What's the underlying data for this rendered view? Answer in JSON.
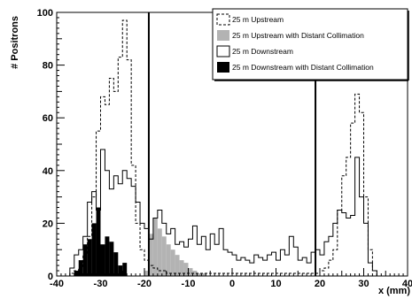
{
  "chart_data": {
    "type": "histogram",
    "xlabel": "x (mm)",
    "ylabel": "# Positrons",
    "xlim": [
      -40,
      40
    ],
    "ylim": [
      0,
      100
    ],
    "x_ticks": [
      "-40",
      "-30",
      "-20",
      "-10",
      "0",
      "10",
      "20",
      "30",
      "40"
    ],
    "y_ticks": [
      "0",
      "20",
      "40",
      "60",
      "80",
      "100"
    ],
    "bin_width": 1,
    "legend": {
      "position": "top-right"
    },
    "vertical_lines": [
      -19,
      19
    ],
    "series": [
      {
        "name": "25 m Upstream",
        "style": "dashed-outline",
        "bins": [
          [
            -37,
            1
          ],
          [
            -36,
            2
          ],
          [
            -35,
            3
          ],
          [
            -34,
            8
          ],
          [
            -33,
            15
          ],
          [
            -32,
            30
          ],
          [
            -31,
            55
          ],
          [
            -30,
            68
          ],
          [
            -29,
            65
          ],
          [
            -28,
            75
          ],
          [
            -27,
            70
          ],
          [
            -26,
            83
          ],
          [
            -25,
            97
          ],
          [
            -24,
            82
          ],
          [
            -23,
            42
          ],
          [
            -22,
            20
          ],
          [
            -21,
            10
          ],
          [
            -20,
            6
          ],
          [
            -19,
            4
          ],
          [
            -18,
            3
          ],
          [
            -17,
            2
          ],
          [
            -16,
            2
          ],
          [
            -15,
            1
          ],
          [
            -14,
            1
          ],
          [
            -13,
            1
          ],
          [
            -12,
            1
          ],
          [
            -11,
            1
          ],
          [
            -10,
            1
          ],
          [
            -9,
            1
          ],
          [
            -8,
            1
          ],
          [
            -7,
            1
          ],
          [
            -6,
            1
          ],
          [
            -5,
            1
          ],
          [
            -4,
            1
          ],
          [
            -3,
            1
          ],
          [
            -2,
            1
          ],
          [
            -1,
            1
          ],
          [
            0,
            1
          ],
          [
            1,
            1
          ],
          [
            2,
            1
          ],
          [
            3,
            1
          ],
          [
            4,
            1
          ],
          [
            5,
            1
          ],
          [
            6,
            1
          ],
          [
            7,
            1
          ],
          [
            8,
            1
          ],
          [
            9,
            1
          ],
          [
            10,
            1
          ],
          [
            11,
            1
          ],
          [
            12,
            1
          ],
          [
            13,
            1
          ],
          [
            14,
            1
          ],
          [
            15,
            1
          ],
          [
            16,
            1
          ],
          [
            17,
            1
          ],
          [
            18,
            1
          ],
          [
            19,
            1
          ],
          [
            20,
            2
          ],
          [
            21,
            3
          ],
          [
            22,
            6
          ],
          [
            23,
            10
          ],
          [
            24,
            25
          ],
          [
            25,
            38
          ],
          [
            26,
            45
          ],
          [
            27,
            58
          ],
          [
            28,
            69
          ],
          [
            29,
            62
          ],
          [
            30,
            30
          ],
          [
            31,
            10
          ],
          [
            32,
            2
          ]
        ]
      },
      {
        "name": "25 m Upstream with Distant Collimation",
        "style": "gray-fill",
        "bins": [
          [
            -20,
            2
          ],
          [
            -19,
            16
          ],
          [
            -18,
            22
          ],
          [
            -17,
            18
          ],
          [
            -16,
            15
          ],
          [
            -15,
            12
          ],
          [
            -14,
            10
          ],
          [
            -13,
            8
          ],
          [
            -12,
            6
          ],
          [
            -11,
            5
          ],
          [
            -10,
            3
          ],
          [
            -9,
            2
          ],
          [
            -8,
            1
          ],
          [
            -7,
            1
          ]
        ]
      },
      {
        "name": "25 m Downstream",
        "style": "solid-outline",
        "bins": [
          [
            -37,
            3
          ],
          [
            -36,
            8
          ],
          [
            -35,
            10
          ],
          [
            -34,
            15
          ],
          [
            -33,
            28
          ],
          [
            -32,
            32
          ],
          [
            -31,
            25
          ],
          [
            -30,
            48
          ],
          [
            -29,
            40
          ],
          [
            -28,
            33
          ],
          [
            -27,
            38
          ],
          [
            -26,
            35
          ],
          [
            -25,
            40
          ],
          [
            -24,
            37
          ],
          [
            -23,
            34
          ],
          [
            -22,
            28
          ],
          [
            -21,
            20
          ],
          [
            -20,
            18
          ],
          [
            -19,
            14
          ],
          [
            -18,
            22
          ],
          [
            -17,
            25
          ],
          [
            -16,
            20
          ],
          [
            -15,
            16
          ],
          [
            -14,
            18
          ],
          [
            -13,
            12
          ],
          [
            -12,
            13
          ],
          [
            -11,
            11
          ],
          [
            -10,
            14
          ],
          [
            -9,
            19
          ],
          [
            -8,
            12
          ],
          [
            -7,
            15
          ],
          [
            -6,
            10
          ],
          [
            -5,
            16
          ],
          [
            -4,
            12
          ],
          [
            -3,
            18
          ],
          [
            -2,
            10
          ],
          [
            -1,
            9
          ],
          [
            0,
            8
          ],
          [
            1,
            6
          ],
          [
            2,
            7
          ],
          [
            3,
            6
          ],
          [
            4,
            5
          ],
          [
            5,
            8
          ],
          [
            6,
            7
          ],
          [
            7,
            6
          ],
          [
            8,
            8
          ],
          [
            9,
            9
          ],
          [
            10,
            6
          ],
          [
            11,
            10
          ],
          [
            12,
            8
          ],
          [
            13,
            15
          ],
          [
            14,
            11
          ],
          [
            15,
            6
          ],
          [
            16,
            7
          ],
          [
            17,
            5
          ],
          [
            18,
            9
          ],
          [
            19,
            10
          ],
          [
            20,
            8
          ],
          [
            21,
            13
          ],
          [
            22,
            15
          ],
          [
            23,
            20
          ],
          [
            24,
            25
          ],
          [
            25,
            24
          ],
          [
            26,
            22
          ],
          [
            27,
            23
          ],
          [
            28,
            45
          ],
          [
            29,
            30
          ],
          [
            30,
            20
          ],
          [
            31,
            5
          ],
          [
            32,
            2
          ]
        ]
      },
      {
        "name": "25 m Downstream with Distant Collimation",
        "style": "black-fill",
        "bins": [
          [
            -36,
            2
          ],
          [
            -35,
            6
          ],
          [
            -34,
            12
          ],
          [
            -33,
            14
          ],
          [
            -32,
            20
          ],
          [
            -31,
            26
          ],
          [
            -30,
            12
          ],
          [
            -29,
            15
          ],
          [
            -28,
            13
          ],
          [
            -27,
            9
          ],
          [
            -26,
            4
          ],
          [
            -25,
            5
          ]
        ]
      }
    ]
  }
}
